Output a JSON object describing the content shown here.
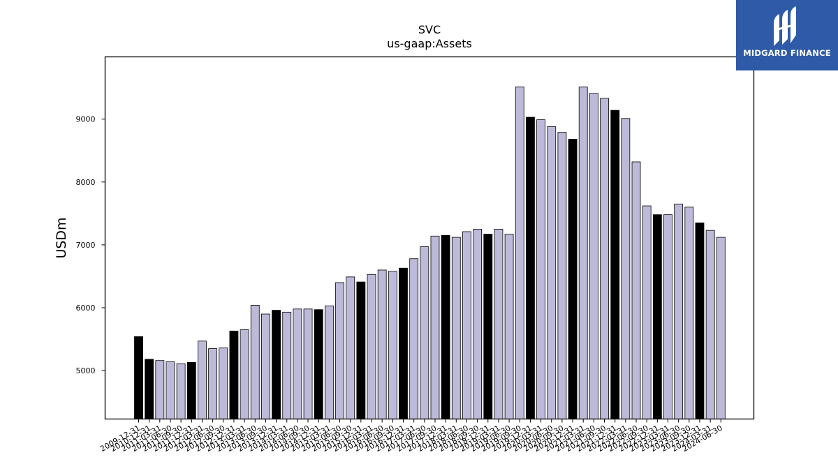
{
  "brand": {
    "name": "MIDGARD FINANCE",
    "background": "#2e5aa8"
  },
  "chart_data": {
    "type": "bar",
    "title": "SVC",
    "subtitle": "us-gaap:Assets",
    "xlabel": "",
    "ylabel": "USDm",
    "ylim": [
      4230,
      9990
    ],
    "yticks": [
      5000,
      6000,
      7000,
      8000,
      9000
    ],
    "grid": false,
    "colors": {
      "highlight": "#000000",
      "normal": "#bcbad8",
      "edge": "#000000"
    },
    "categories": [
      "2009-12-31",
      "2010-12-31",
      "2011-03-31",
      "2011-06-30",
      "2011-09-30",
      "2011-12-31",
      "2012-03-31",
      "2012-06-30",
      "2012-09-30",
      "2012-12-31",
      "2013-03-31",
      "2013-06-30",
      "2013-09-30",
      "2013-12-31",
      "2014-03-31",
      "2014-06-30",
      "2014-09-30",
      "2014-12-31",
      "2015-03-31",
      "2015-06-30",
      "2015-09-30",
      "2015-12-31",
      "2016-03-31",
      "2016-06-30",
      "2016-09-30",
      "2016-12-31",
      "2017-03-31",
      "2017-06-30",
      "2017-09-30",
      "2017-12-31",
      "2018-03-31",
      "2018-06-30",
      "2018-09-30",
      "2018-12-31",
      "2019-03-31",
      "2019-06-30",
      "2019-09-30",
      "2019-12-31",
      "2020-03-31",
      "2020-06-30",
      "2020-09-30",
      "2020-12-31",
      "2021-03-31",
      "2021-06-30",
      "2021-09-30",
      "2021-12-31",
      "2022-03-31",
      "2022-06-30",
      "2022-09-30",
      "2022-12-31",
      "2023-03-31",
      "2023-06-30",
      "2023-09-30",
      "2023-12-31",
      "2024-03-31",
      "2024-06-30"
    ],
    "values": [
      5540,
      5180,
      5160,
      5140,
      5110,
      5130,
      5470,
      5350,
      5360,
      5630,
      5650,
      6040,
      5900,
      5960,
      5930,
      5980,
      5980,
      5970,
      6030,
      6400,
      6490,
      6410,
      6530,
      6600,
      6580,
      6630,
      6780,
      6970,
      7140,
      7150,
      7120,
      7210,
      7250,
      7170,
      7250,
      7170,
      9510,
      9030,
      8990,
      8880,
      8790,
      8680,
      9510,
      9410,
      9330,
      9140,
      9010,
      8320,
      7620,
      7480,
      7480,
      7650,
      7600,
      7350,
      7230,
      7120
    ],
    "highlighted": [
      true,
      true,
      false,
      false,
      false,
      true,
      false,
      false,
      false,
      true,
      false,
      false,
      false,
      true,
      false,
      false,
      false,
      true,
      false,
      false,
      false,
      true,
      false,
      false,
      false,
      true,
      false,
      false,
      false,
      true,
      false,
      false,
      false,
      true,
      false,
      false,
      false,
      true,
      false,
      false,
      false,
      true,
      false,
      false,
      false,
      true,
      false,
      false,
      false,
      true,
      false,
      false,
      false,
      true,
      false,
      false
    ]
  }
}
